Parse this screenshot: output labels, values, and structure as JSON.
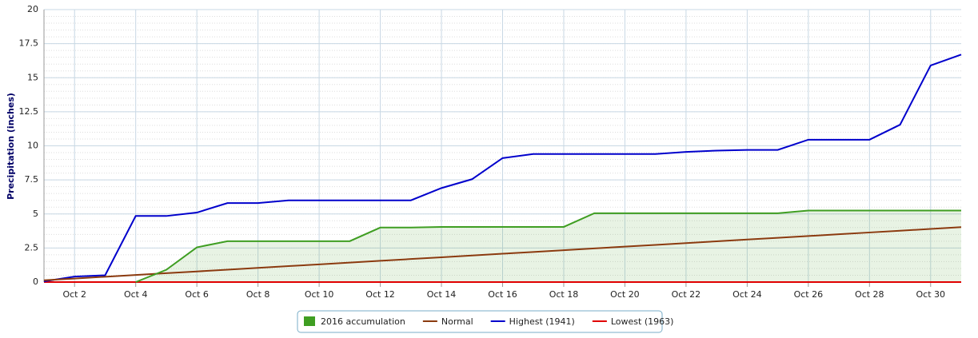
{
  "chart_data": {
    "type": "line",
    "y_label": "Precipitation (inches)",
    "categories": [
      null,
      "Oct 2",
      null,
      "Oct 4",
      null,
      "Oct 6",
      null,
      "Oct 8",
      null,
      "Oct 10",
      null,
      "Oct 12",
      null,
      "Oct 14",
      null,
      "Oct 16",
      null,
      "Oct 18",
      null,
      "Oct 20",
      null,
      "Oct 22",
      null,
      "Oct 24",
      null,
      "Oct 26",
      null,
      "Oct 28",
      null,
      "Oct 30",
      null
    ],
    "ylim": [
      0,
      20
    ],
    "yticks": [
      0,
      2.5,
      5,
      7.5,
      10,
      12.5,
      15,
      17.5,
      20
    ],
    "grid": true,
    "legend": "bottom",
    "series": [
      {
        "name": "2016 accumulation",
        "type": "area",
        "color": "#3f9e22",
        "values": [
          null,
          null,
          null,
          0,
          0.9,
          2.55,
          3.0,
          3.0,
          3.0,
          3.0,
          3.0,
          4.0,
          4.0,
          4.05,
          4.05,
          4.05,
          4.05,
          4.05,
          5.05,
          5.05,
          5.05,
          5.05,
          5.05,
          5.05,
          5.05,
          5.25,
          5.25,
          5.25,
          5.25,
          5.25,
          5.25
        ]
      },
      {
        "name": "Normal",
        "type": "line",
        "color": "#8b3a0f",
        "values": [
          0.13,
          0.26,
          0.39,
          0.52,
          0.65,
          0.78,
          0.91,
          1.04,
          1.17,
          1.3,
          1.43,
          1.56,
          1.69,
          1.82,
          1.95,
          2.08,
          2.21,
          2.34,
          2.47,
          2.6,
          2.73,
          2.86,
          2.99,
          3.12,
          3.25,
          3.38,
          3.51,
          3.64,
          3.77,
          3.9,
          4.03
        ]
      },
      {
        "name": "Highest (1941)",
        "type": "line",
        "color": "#0000cc",
        "values": [
          0.05,
          0.4,
          0.5,
          4.85,
          4.85,
          5.1,
          5.8,
          5.8,
          6.0,
          6.0,
          6.0,
          6.0,
          6.0,
          6.9,
          7.55,
          9.1,
          9.4,
          9.4,
          9.4,
          9.4,
          9.4,
          9.55,
          9.65,
          9.7,
          9.7,
          10.45,
          10.45,
          10.45,
          11.55,
          15.9,
          16.7
        ]
      },
      {
        "name": "Lowest (1963)",
        "type": "line",
        "color": "#e00000",
        "values": [
          0,
          0,
          0,
          0,
          0,
          0,
          0,
          0,
          0,
          0,
          0,
          0,
          0,
          0,
          0,
          0,
          0,
          0,
          0,
          0,
          0,
          0,
          0,
          0,
          0,
          0,
          0,
          0,
          0,
          0,
          0
        ]
      }
    ]
  }
}
